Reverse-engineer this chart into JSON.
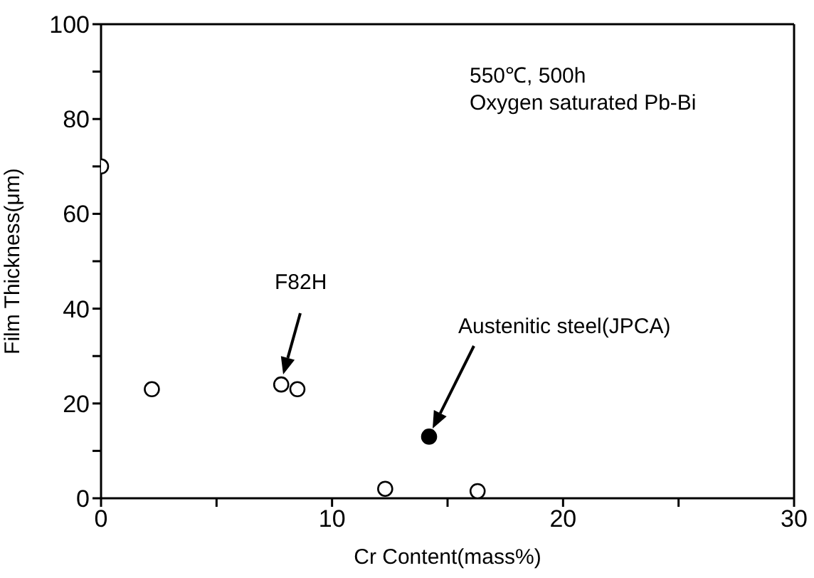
{
  "chart_data": {
    "type": "scatter",
    "xlabel": "Cr Content(mass%)",
    "ylabel": "Film Thickness(μm)",
    "xlim": [
      0,
      30
    ],
    "xticks": [
      0,
      {
        "value": 5,
        "label": null
      },
      10,
      {
        "value": 15,
        "label": null
      },
      20,
      {
        "value": 25,
        "label": null
      },
      30
    ],
    "ylim": [
      0,
      100
    ],
    "yticks": [
      0,
      {
        "value": 10,
        "label": null
      },
      20,
      {
        "value": 30,
        "label": null
      },
      40,
      {
        "value": 50,
        "label": null
      },
      60,
      {
        "value": 70,
        "label": null
      },
      80,
      {
        "value": 90,
        "label": null
      },
      100
    ],
    "series": [
      {
        "color": "#000000",
        "x": [
          0,
          2.2,
          7.8,
          8.5,
          12.3,
          16.3
        ],
        "values": [
          70,
          23,
          24,
          23,
          2,
          1.5
        ]
      },
      {
        "color": "#000000",
        "x": [
          14.2
        ],
        "values": [
          13
        ]
      }
    ],
    "marker": "circle",
    "legend": false,
    "annotations": [
      "550℃, 500h",
      "Oxygen saturated Pb-Bi",
      "F82H",
      "Austenitic steel(JPCA)"
    ]
  }
}
